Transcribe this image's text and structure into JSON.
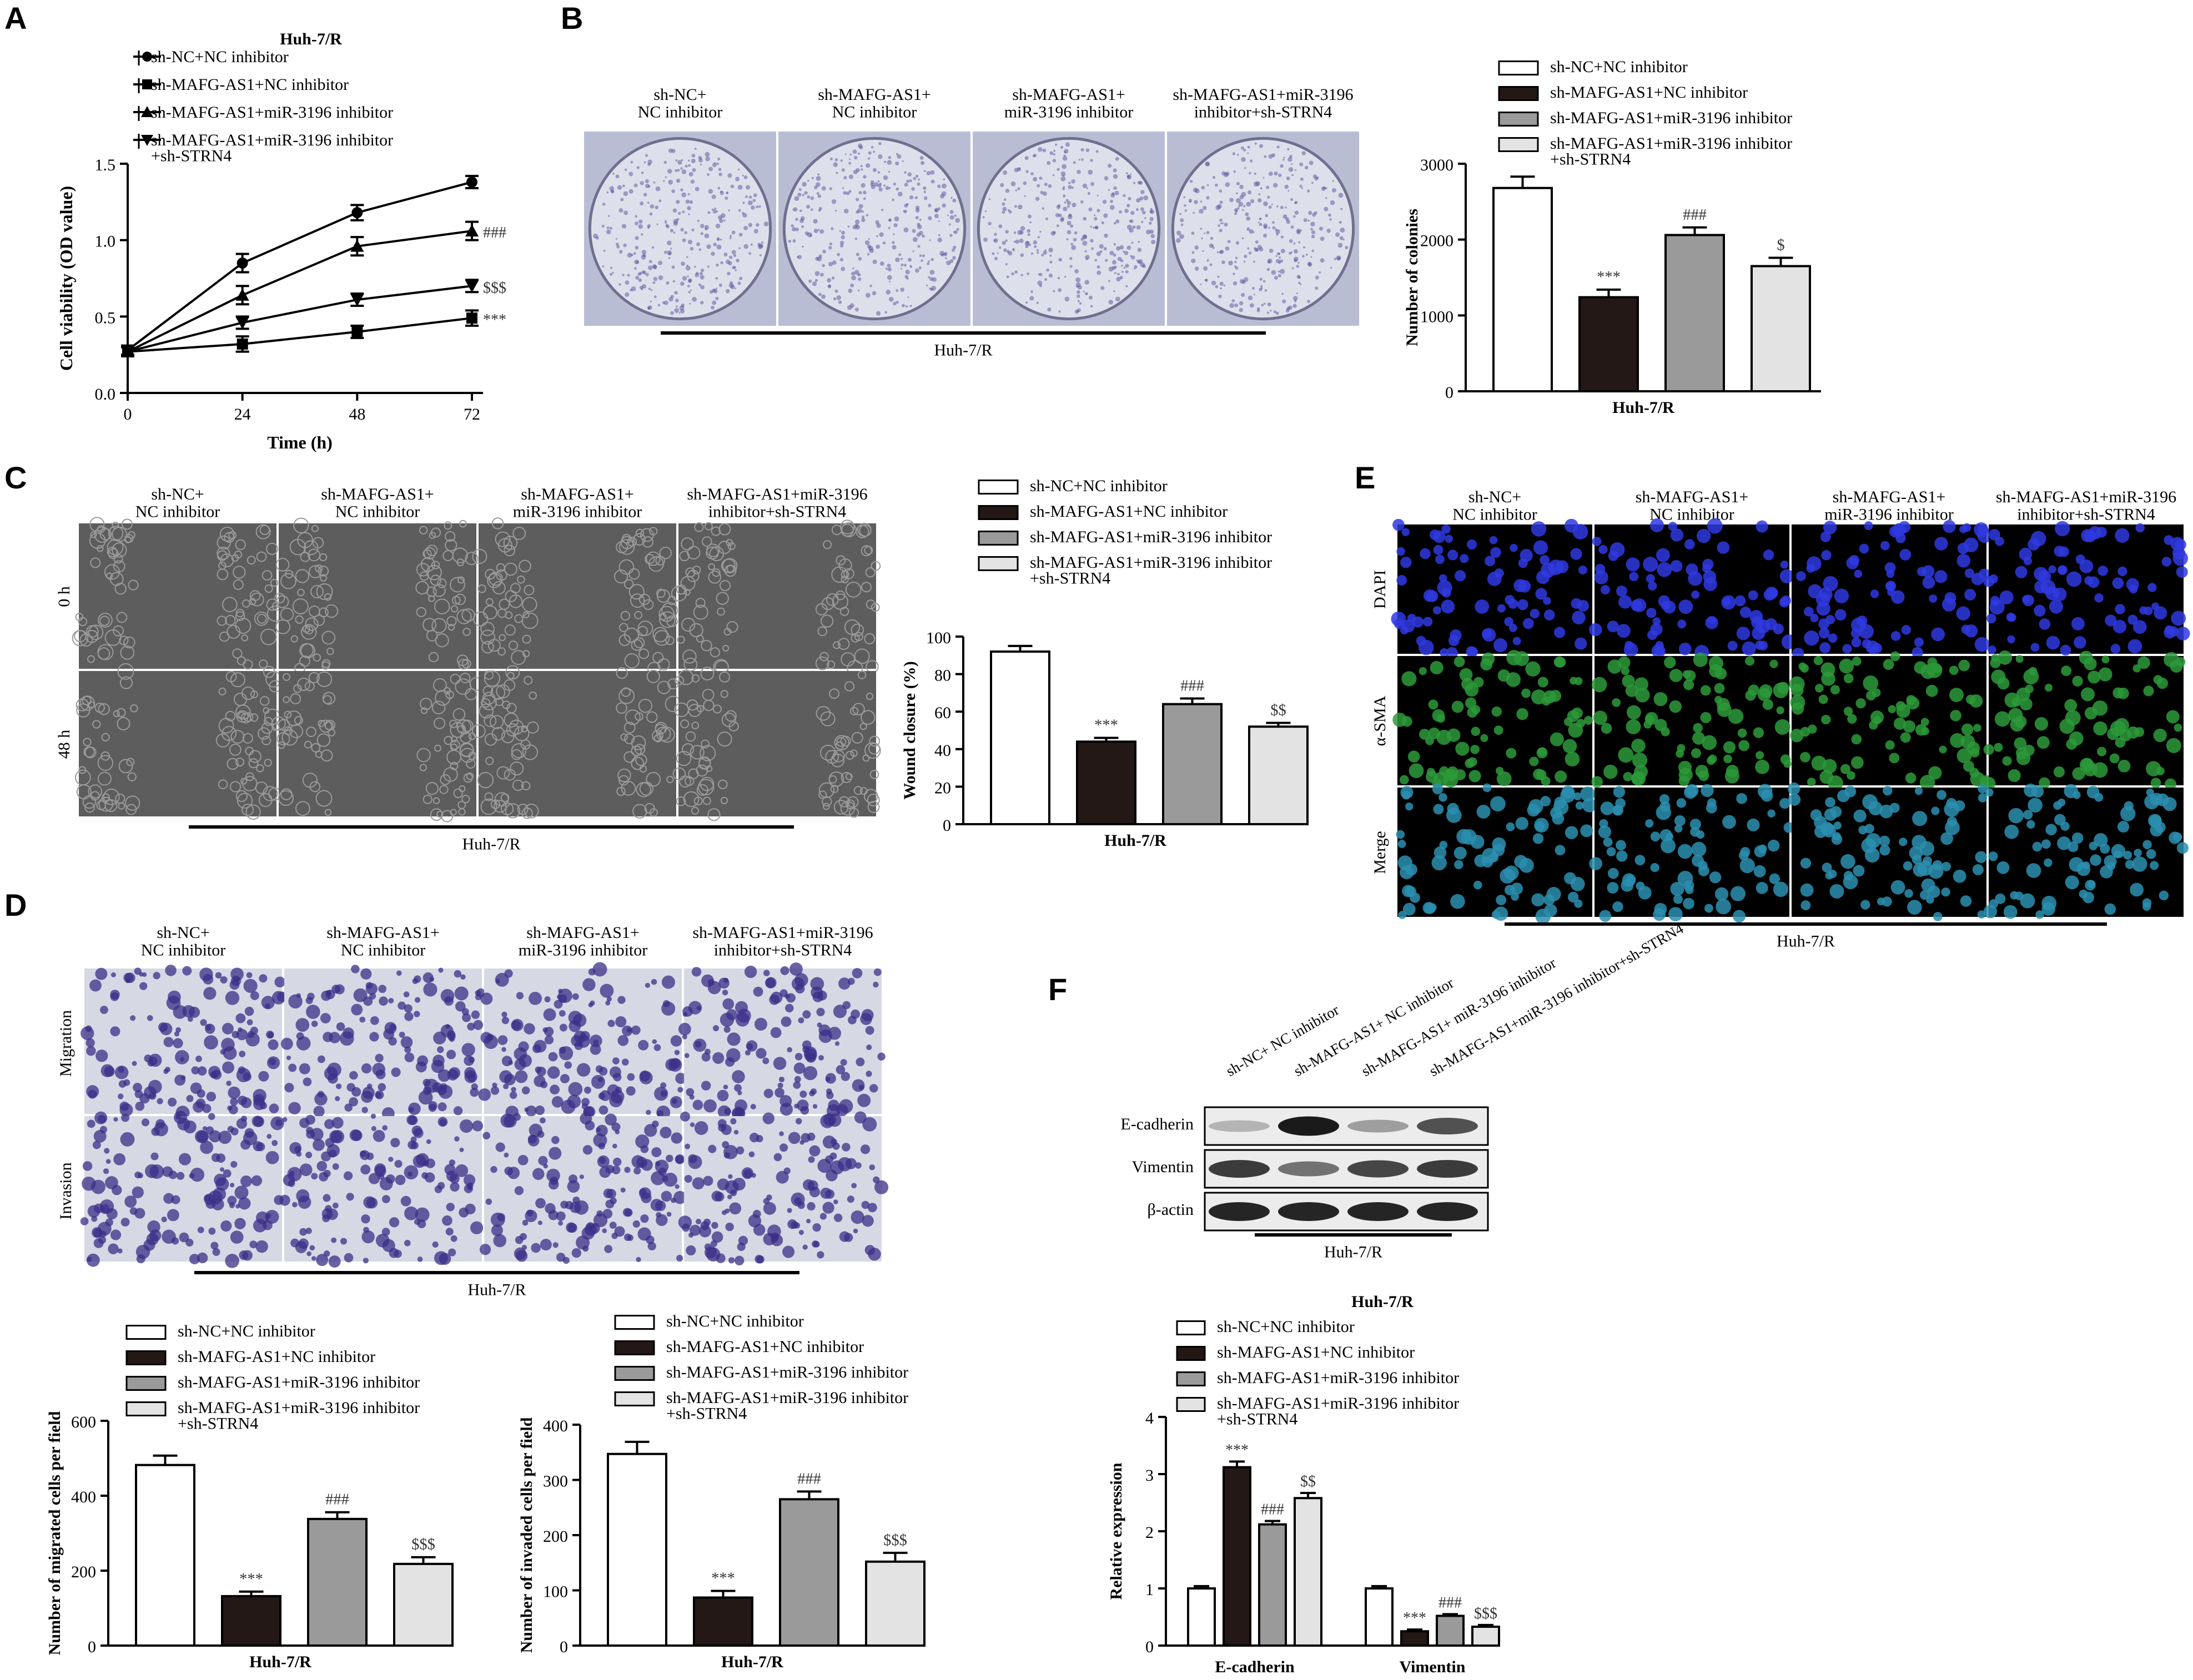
{
  "common": {
    "cell_line": "Huh-7/R",
    "groups": [
      "sh-NC+NC inhibitor",
      "sh-MAFG-AS1+NC inhibitor",
      "sh-MAFG-AS1+miR-3196 inhibitor",
      "sh-MAFG-AS1+miR-3196 inhibitor +sh-STRN4"
    ],
    "group_headers": [
      [
        "sh-NC+",
        "NC inhibitor"
      ],
      [
        "sh-MAFG-AS1+",
        "NC inhibitor"
      ],
      [
        "sh-MAFG-AS1+",
        "miR-3196 inhibitor"
      ],
      [
        "sh-MAFG-AS1+miR-3196",
        "inhibitor+sh-STRN4"
      ]
    ],
    "legend_lines": [
      [
        "sh-NC+NC inhibitor"
      ],
      [
        "sh-MAFG-AS1+NC inhibitor"
      ],
      [
        "sh-MAFG-AS1+miR-3196 inhibitor"
      ],
      [
        "sh-MAFG-AS1+miR-3196 inhibitor",
        "+sh-STRN4"
      ]
    ],
    "bar_colors": [
      "#ffffff",
      "#231815",
      "#9a9a9a",
      "#e3e3e3"
    ],
    "line_markers": [
      "circle",
      "square",
      "triangle-up",
      "triangle-down"
    ]
  },
  "panel_labels": {
    "A": "A",
    "B": "B",
    "C": "C",
    "D": "D",
    "E": "E",
    "F": "F"
  },
  "row_labels": {
    "C": [
      "0 h",
      "48 h"
    ],
    "D": [
      "Migration",
      "Invasion"
    ],
    "E": [
      "DAPI",
      "α-SMA",
      "Merge"
    ]
  },
  "blot": {
    "bands": [
      "E-cadherin",
      "Vimentin",
      "β-actin"
    ],
    "headers": [
      "sh-NC+ NC inhibitor",
      "sh-MAFG-AS1+ NC inhibitor",
      "sh-MAFG-AS1+ miR-3196 inhibitor",
      "sh-MAFG-AS1+miR-3196 inhibitor+sh-STRN4"
    ],
    "intensity": [
      [
        0.25,
        0.95,
        0.35,
        0.7
      ],
      [
        0.8,
        0.55,
        0.75,
        0.8
      ],
      [
        0.9,
        0.9,
        0.9,
        0.9
      ]
    ]
  },
  "chart_data": [
    {
      "id": "A",
      "type": "line",
      "title": "Huh-7/R",
      "xlabel": "Time (h)",
      "ylabel": "Cell viability (OD value)",
      "x": [
        0,
        24,
        48,
        72
      ],
      "xlim": [
        0,
        72
      ],
      "ylim": [
        0,
        1.5
      ],
      "xticks": [
        "0",
        "24",
        "48",
        "72"
      ],
      "yticks": [
        "0.0",
        "0.5",
        "1.0",
        "1.5"
      ],
      "series": [
        {
          "name": "sh-NC+NC inhibitor",
          "values": [
            0.28,
            0.85,
            1.18,
            1.38
          ],
          "err": [
            0.03,
            0.06,
            0.05,
            0.04
          ]
        },
        {
          "name": "sh-MAFG-AS1+NC inhibitor",
          "values": [
            0.27,
            0.32,
            0.4,
            0.49
          ],
          "err": [
            0.03,
            0.05,
            0.04,
            0.05
          ]
        },
        {
          "name": "sh-MAFG-AS1+miR-3196 inhibitor",
          "values": [
            0.27,
            0.64,
            0.96,
            1.06
          ],
          "err": [
            0.03,
            0.06,
            0.06,
            0.06
          ]
        },
        {
          "name": "sh-MAFG-AS1+miR-3196 inhibitor +sh-STRN4",
          "values": [
            0.27,
            0.46,
            0.61,
            0.7
          ],
          "err": [
            0.03,
            0.04,
            0.04,
            0.04
          ]
        }
      ],
      "annotations": [
        "###",
        "$$$",
        "***"
      ]
    },
    {
      "id": "B",
      "type": "bar",
      "xlabel": "Huh-7/R",
      "ylabel": "Number of colonies",
      "categories": [
        "sh-NC+NC inhibitor",
        "sh-MAFG-AS1+NC inhibitor",
        "sh-MAFG-AS1+miR-3196 inhibitor",
        "sh-MAFG-AS1+miR-3196 inhibitor +sh-STRN4"
      ],
      "values": [
        2680,
        1240,
        2060,
        1650
      ],
      "err": [
        150,
        100,
        100,
        110
      ],
      "ylim": [
        0,
        3000
      ],
      "yticks": [
        "0",
        "1000",
        "2000",
        "3000"
      ],
      "annotations": [
        "",
        "***",
        "###",
        "$"
      ]
    },
    {
      "id": "C",
      "type": "bar",
      "xlabel": "Huh-7/R",
      "ylabel": "Wound closure (%)",
      "categories": [
        "sh-NC+NC inhibitor",
        "sh-MAFG-AS1+NC inhibitor",
        "sh-MAFG-AS1+miR-3196 inhibitor",
        "sh-MAFG-AS1+miR-3196 inhibitor +sh-STRN4"
      ],
      "values": [
        92,
        44,
        64,
        52
      ],
      "err": [
        3,
        2,
        3,
        2
      ],
      "ylim": [
        0,
        100
      ],
      "yticks": [
        "0",
        "20",
        "40",
        "60",
        "80",
        "100"
      ],
      "annotations": [
        "",
        "***",
        "###",
        "$$"
      ]
    },
    {
      "id": "D-migration",
      "type": "bar",
      "xlabel": "Huh-7/R",
      "ylabel": "Number of migrated cells per field",
      "categories": [
        "sh-NC+NC inhibitor",
        "sh-MAFG-AS1+NC inhibitor",
        "sh-MAFG-AS1+miR-3196 inhibitor",
        "sh-MAFG-AS1+miR-3196 inhibitor +sh-STRN4"
      ],
      "values": [
        482,
        132,
        338,
        218
      ],
      "err": [
        25,
        12,
        18,
        18
      ],
      "ylim": [
        0,
        600
      ],
      "yticks": [
        "0",
        "200",
        "400",
        "600"
      ],
      "annotations": [
        "",
        "***",
        "###",
        "$$$"
      ]
    },
    {
      "id": "D-invasion",
      "type": "bar",
      "xlabel": "Huh-7/R",
      "ylabel": "Number of invaded cells per field",
      "categories": [
        "sh-NC+NC inhibitor",
        "sh-MAFG-AS1+NC inhibitor",
        "sh-MAFG-AS1+miR-3196 inhibitor",
        "sh-MAFG-AS1+miR-3196 inhibitor +sh-STRN4"
      ],
      "values": [
        347,
        87,
        265,
        152
      ],
      "err": [
        22,
        12,
        14,
        16
      ],
      "ylim": [
        0,
        400
      ],
      "yticks": [
        "0",
        "100",
        "200",
        "300",
        "400"
      ],
      "annotations": [
        "",
        "***",
        "###",
        "$$$"
      ]
    },
    {
      "id": "F",
      "type": "bar",
      "title": "Huh-7/R",
      "ylabel": "Relative expression",
      "categories": [
        "E-cadherin",
        "Vimentin"
      ],
      "series": [
        {
          "name": "sh-NC+NC inhibitor",
          "values": [
            1.0,
            1.0
          ],
          "err": [
            0.04,
            0.04
          ]
        },
        {
          "name": "sh-MAFG-AS1+NC inhibitor",
          "values": [
            3.12,
            0.25
          ],
          "err": [
            0.1,
            0.03
          ]
        },
        {
          "name": "sh-MAFG-AS1+miR-3196 inhibitor",
          "values": [
            2.12,
            0.52
          ],
          "err": [
            0.06,
            0.03
          ]
        },
        {
          "name": "sh-MAFG-AS1+miR-3196 inhibitor +sh-STRN4",
          "values": [
            2.58,
            0.33
          ],
          "err": [
            0.09,
            0.03
          ]
        }
      ],
      "ylim": [
        0,
        4
      ],
      "yticks": [
        "0",
        "1",
        "2",
        "3",
        "4"
      ],
      "annotations": [
        [
          "",
          "***",
          "###",
          "$$"
        ],
        [
          "",
          "***",
          "###",
          "$$$"
        ]
      ]
    }
  ]
}
